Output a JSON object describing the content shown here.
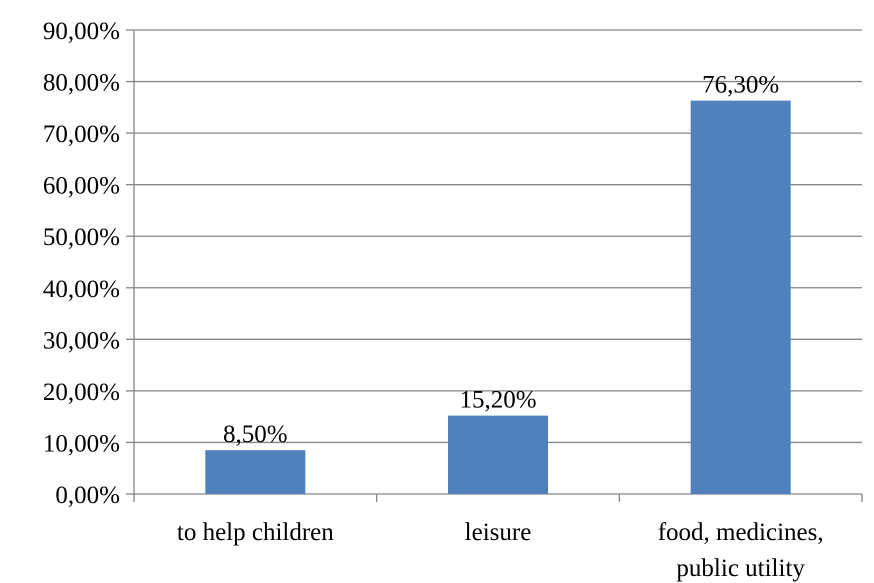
{
  "chart_data": {
    "type": "bar",
    "categories": [
      [
        "to help children"
      ],
      [
        "leisure"
      ],
      [
        "food, medicines,",
        "public utility"
      ]
    ],
    "values": [
      8.5,
      15.2,
      76.3
    ],
    "data_labels": [
      "8,50%",
      "15,20%",
      "76,30%"
    ],
    "y_ticks": [
      0,
      10,
      20,
      30,
      40,
      50,
      60,
      70,
      80,
      90
    ],
    "y_tick_labels": [
      "0,00%",
      "10,00%",
      "20,00%",
      "30,00%",
      "40,00%",
      "50,00%",
      "60,00%",
      "70,00%",
      "80,00%",
      "90,00%"
    ],
    "ylim": [
      0,
      90
    ],
    "grid": true,
    "bar_color": "#4f81bd",
    "gridline_color": "#868686"
  }
}
